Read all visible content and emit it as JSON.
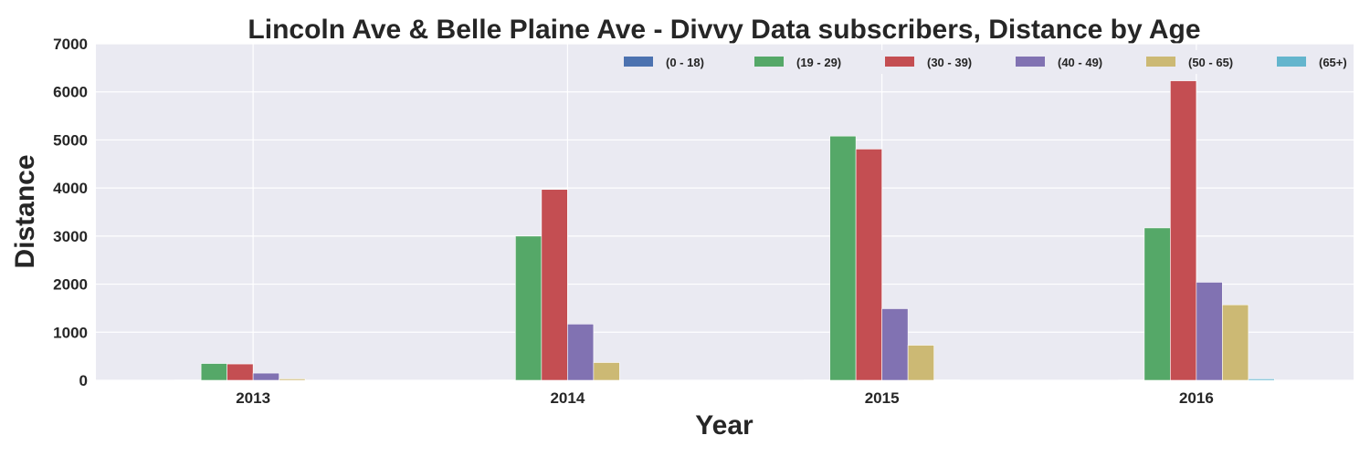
{
  "chart_data": {
    "type": "bar",
    "title": "Lincoln Ave & Belle Plaine Ave - Divvy Data subscribers, Distance by Age",
    "xlabel": "Year",
    "ylabel": "Distance",
    "categories": [
      "2013",
      "2014",
      "2015",
      "2016"
    ],
    "ylim": [
      0,
      7000
    ],
    "yticks": [
      0,
      1000,
      2000,
      3000,
      4000,
      5000,
      6000,
      7000
    ],
    "grid": true,
    "legend_position": "top-right",
    "series": [
      {
        "name": "(0 - 18)",
        "color": "#4C72B0",
        "values": [
          10,
          10,
          10,
          10
        ]
      },
      {
        "name": "(19 - 29)",
        "color": "#55A868",
        "values": [
          350,
          3000,
          5080,
          3170
        ]
      },
      {
        "name": "(30 - 39)",
        "color": "#C44E52",
        "values": [
          340,
          3970,
          4810,
          6230
        ]
      },
      {
        "name": "(40 - 49)",
        "color": "#8172B2",
        "values": [
          150,
          1170,
          1490,
          2040
        ]
      },
      {
        "name": "(50 - 65)",
        "color": "#CCB974",
        "values": [
          30,
          370,
          730,
          1570
        ]
      },
      {
        "name": "(65+)",
        "color": "#64B5CD",
        "values": [
          5,
          5,
          10,
          30
        ]
      }
    ]
  }
}
